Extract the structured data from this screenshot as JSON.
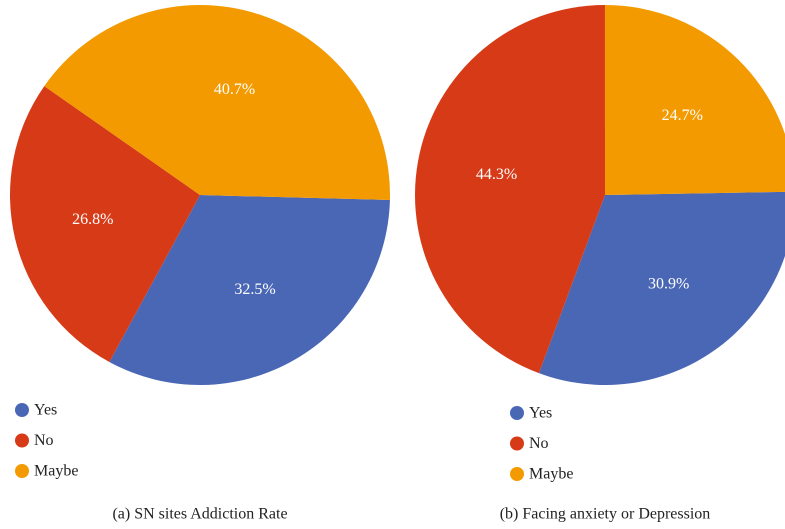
{
  "chart_data": [
    {
      "type": "pie",
      "title": "(a) SN sites Addiction Rate",
      "categories": [
        "Yes",
        "No",
        "Maybe"
      ],
      "values": [
        32.5,
        26.8,
        40.7
      ],
      "value_labels": [
        "32.5%",
        "26.8%",
        "40.7%"
      ],
      "colors": [
        "#4a67b5",
        "#d73a17",
        "#f39a00"
      ],
      "legend": "bottom-left"
    },
    {
      "type": "pie",
      "title": "(b) Facing anxiety or Depression",
      "categories": [
        "Yes",
        "No",
        "Maybe"
      ],
      "values": [
        30.9,
        44.3,
        24.7
      ],
      "value_labels": [
        "30.9%",
        "44.3%",
        "24.7%"
      ],
      "colors": [
        "#4a67b5",
        "#d73a17",
        "#f39a00"
      ],
      "legend": "bottom-left"
    }
  ]
}
